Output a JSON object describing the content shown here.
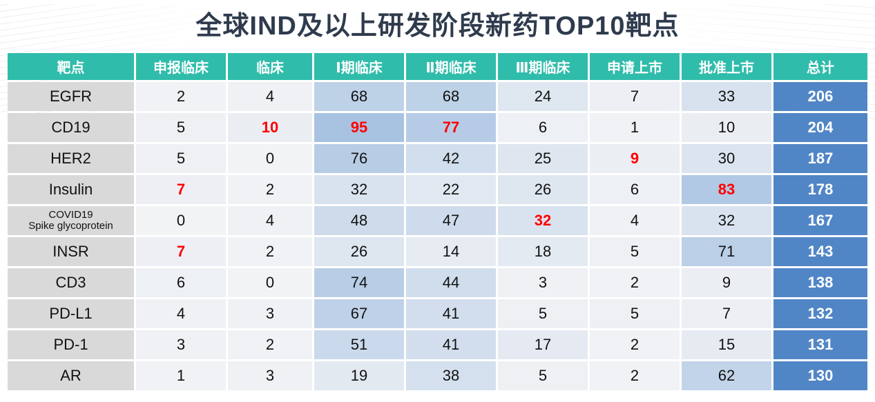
{
  "page": {
    "title": "全球IND及以上研发阶段新药TOP10靶点"
  },
  "colors": {
    "title": "#2f3b4d",
    "header_bg": "#2fbcab",
    "header_text": "#ffffff",
    "row_label_bg": "#d9d9d9",
    "total_bg": "#5186c6",
    "total_text": "#ffffff",
    "red_text": "#ff0000",
    "heatmap_low": "#f2f3f5",
    "heatmap_high": "#a8c3e2"
  },
  "table": {
    "headers": [
      "靶点",
      "申报临床",
      "临床",
      "Ⅰ期临床",
      "Ⅱ期临床",
      "Ⅲ期临床",
      "申请上市",
      "批准上市",
      "总计"
    ],
    "heatmap_max_value": 95,
    "rows": [
      {
        "target": "EGFR",
        "values": [
          2,
          4,
          68,
          68,
          24,
          7,
          33
        ],
        "total": 206,
        "red_indices": []
      },
      {
        "target": "CD19",
        "values": [
          5,
          10,
          95,
          77,
          6,
          1,
          10
        ],
        "total": 204,
        "red_indices": [
          1,
          2,
          3
        ]
      },
      {
        "target": "HER2",
        "values": [
          5,
          0,
          76,
          42,
          25,
          9,
          30
        ],
        "total": 187,
        "red_indices": [
          5
        ]
      },
      {
        "target": "Insulin",
        "values": [
          7,
          2,
          32,
          22,
          26,
          6,
          83
        ],
        "total": 178,
        "red_indices": [
          0,
          6
        ]
      },
      {
        "target": "COVID19",
        "target_line2": "Spike glycoprotein",
        "values": [
          0,
          4,
          48,
          47,
          32,
          4,
          32
        ],
        "total": 167,
        "red_indices": [
          4
        ]
      },
      {
        "target": "INSR",
        "values": [
          7,
          2,
          26,
          14,
          18,
          5,
          71
        ],
        "total": 143,
        "red_indices": [
          0
        ]
      },
      {
        "target": "CD3",
        "values": [
          6,
          0,
          74,
          44,
          3,
          2,
          9
        ],
        "total": 138,
        "red_indices": []
      },
      {
        "target": "PD-L1",
        "values": [
          4,
          3,
          67,
          41,
          5,
          5,
          7
        ],
        "total": 132,
        "red_indices": []
      },
      {
        "target": "PD-1",
        "values": [
          3,
          2,
          51,
          41,
          17,
          2,
          15
        ],
        "total": 131,
        "red_indices": []
      },
      {
        "target": "AR",
        "values": [
          1,
          3,
          19,
          38,
          5,
          2,
          62
        ],
        "total": 130,
        "red_indices": []
      }
    ]
  },
  "chart_data": {
    "type": "table",
    "title": "全球IND及以上研发阶段新药TOP10靶点",
    "columns": [
      "靶点",
      "申报临床",
      "临床",
      "Ⅰ期临床",
      "Ⅱ期临床",
      "Ⅲ期临床",
      "申请上市",
      "批准上市",
      "总计"
    ],
    "rows": [
      [
        "EGFR",
        2,
        4,
        68,
        68,
        24,
        7,
        33,
        206
      ],
      [
        "CD19",
        5,
        10,
        95,
        77,
        6,
        1,
        10,
        204
      ],
      [
        "HER2",
        5,
        0,
        76,
        42,
        25,
        9,
        30,
        187
      ],
      [
        "Insulin",
        7,
        2,
        32,
        22,
        26,
        6,
        83,
        178
      ],
      [
        "COVID19 Spike glycoprotein",
        0,
        4,
        48,
        47,
        32,
        4,
        32,
        167
      ],
      [
        "INSR",
        7,
        2,
        26,
        14,
        18,
        5,
        71,
        143
      ],
      [
        "CD3",
        6,
        0,
        74,
        44,
        3,
        2,
        9,
        138
      ],
      [
        "PD-L1",
        4,
        3,
        67,
        41,
        5,
        5,
        7,
        132
      ],
      [
        "PD-1",
        3,
        2,
        51,
        41,
        17,
        2,
        15,
        131
      ],
      [
        "AR",
        1,
        3,
        19,
        38,
        5,
        2,
        62,
        130
      ]
    ],
    "red_highlight_cells": [
      [
        "CD19",
        "临床"
      ],
      [
        "CD19",
        "Ⅰ期临床"
      ],
      [
        "CD19",
        "Ⅱ期临床"
      ],
      [
        "HER2",
        "申请上市"
      ],
      [
        "Insulin",
        "申报临床"
      ],
      [
        "Insulin",
        "批准上市"
      ],
      [
        "COVID19 Spike glycoprotein",
        "Ⅲ期临床"
      ],
      [
        "INSR",
        "申报临床"
      ]
    ],
    "conditional_formatting": "cell background shaded on a white-to-blue scale proportional to value (max 95); 总计 column solid blue with white bold text",
    "legend_position": "none",
    "grid": "white 3px gaps between cells"
  }
}
